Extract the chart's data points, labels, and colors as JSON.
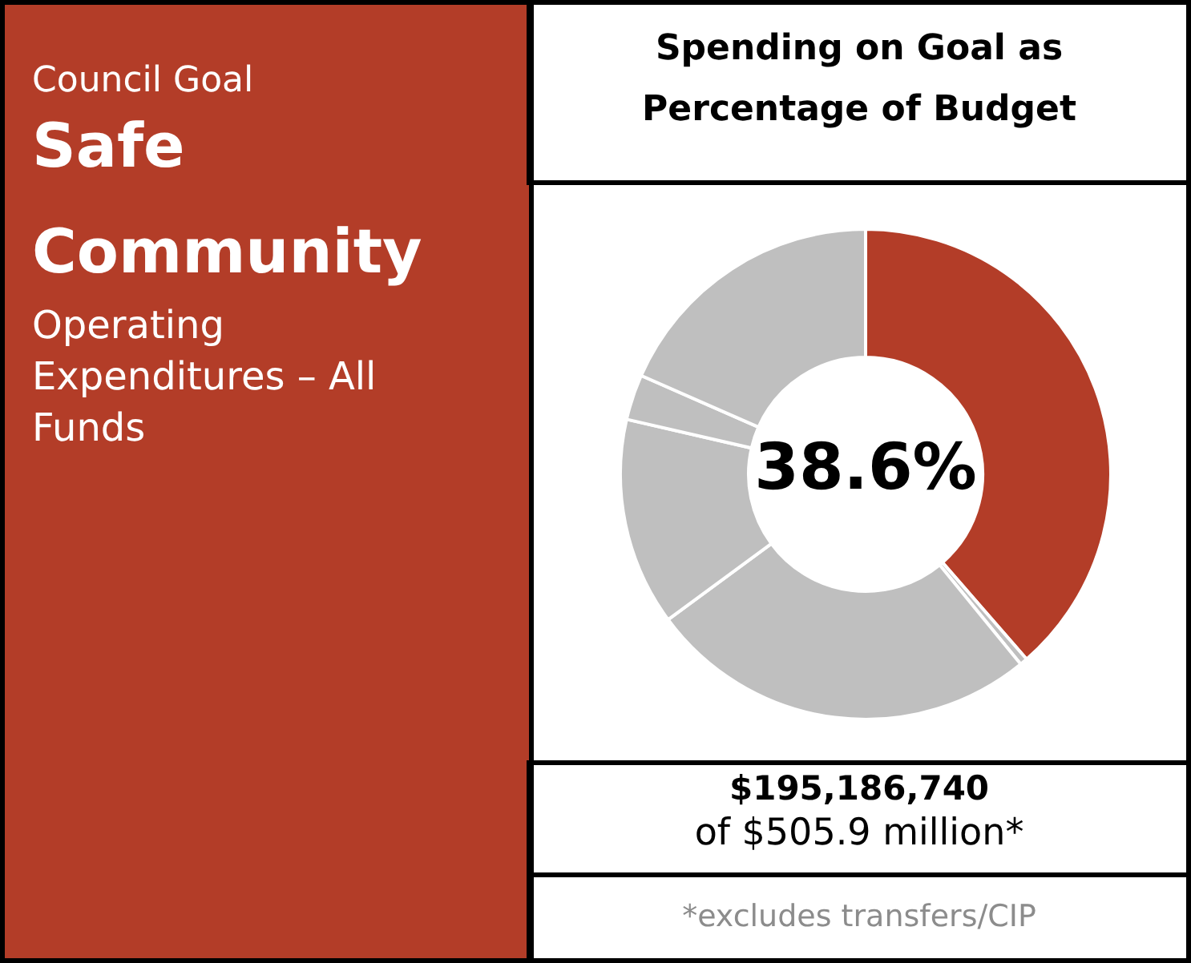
{
  "chart_data": {
    "type": "donut",
    "title": "Spending on Goal as Percentage of Budget",
    "categories": [
      null,
      null,
      null,
      null,
      null,
      null
    ],
    "values": [
      38.6,
      0.5,
      25.8,
      13.7,
      3.0,
      18.4
    ],
    "colors": [
      "#b33d28",
      "#bfbfbf",
      "#bfbfbf",
      "#bfbfbf",
      "#bfbfbf",
      "#bfbfbf"
    ],
    "value_labels": [
      "38.6%",
      null,
      null,
      null,
      null,
      null
    ],
    "annotations": [
      "Council Goal",
      "Safe Community",
      "Operating Expenditures – All Funds",
      "$195,186,740",
      "of $505.9 million*",
      "*excludes transfers/CIP"
    ]
  }
}
